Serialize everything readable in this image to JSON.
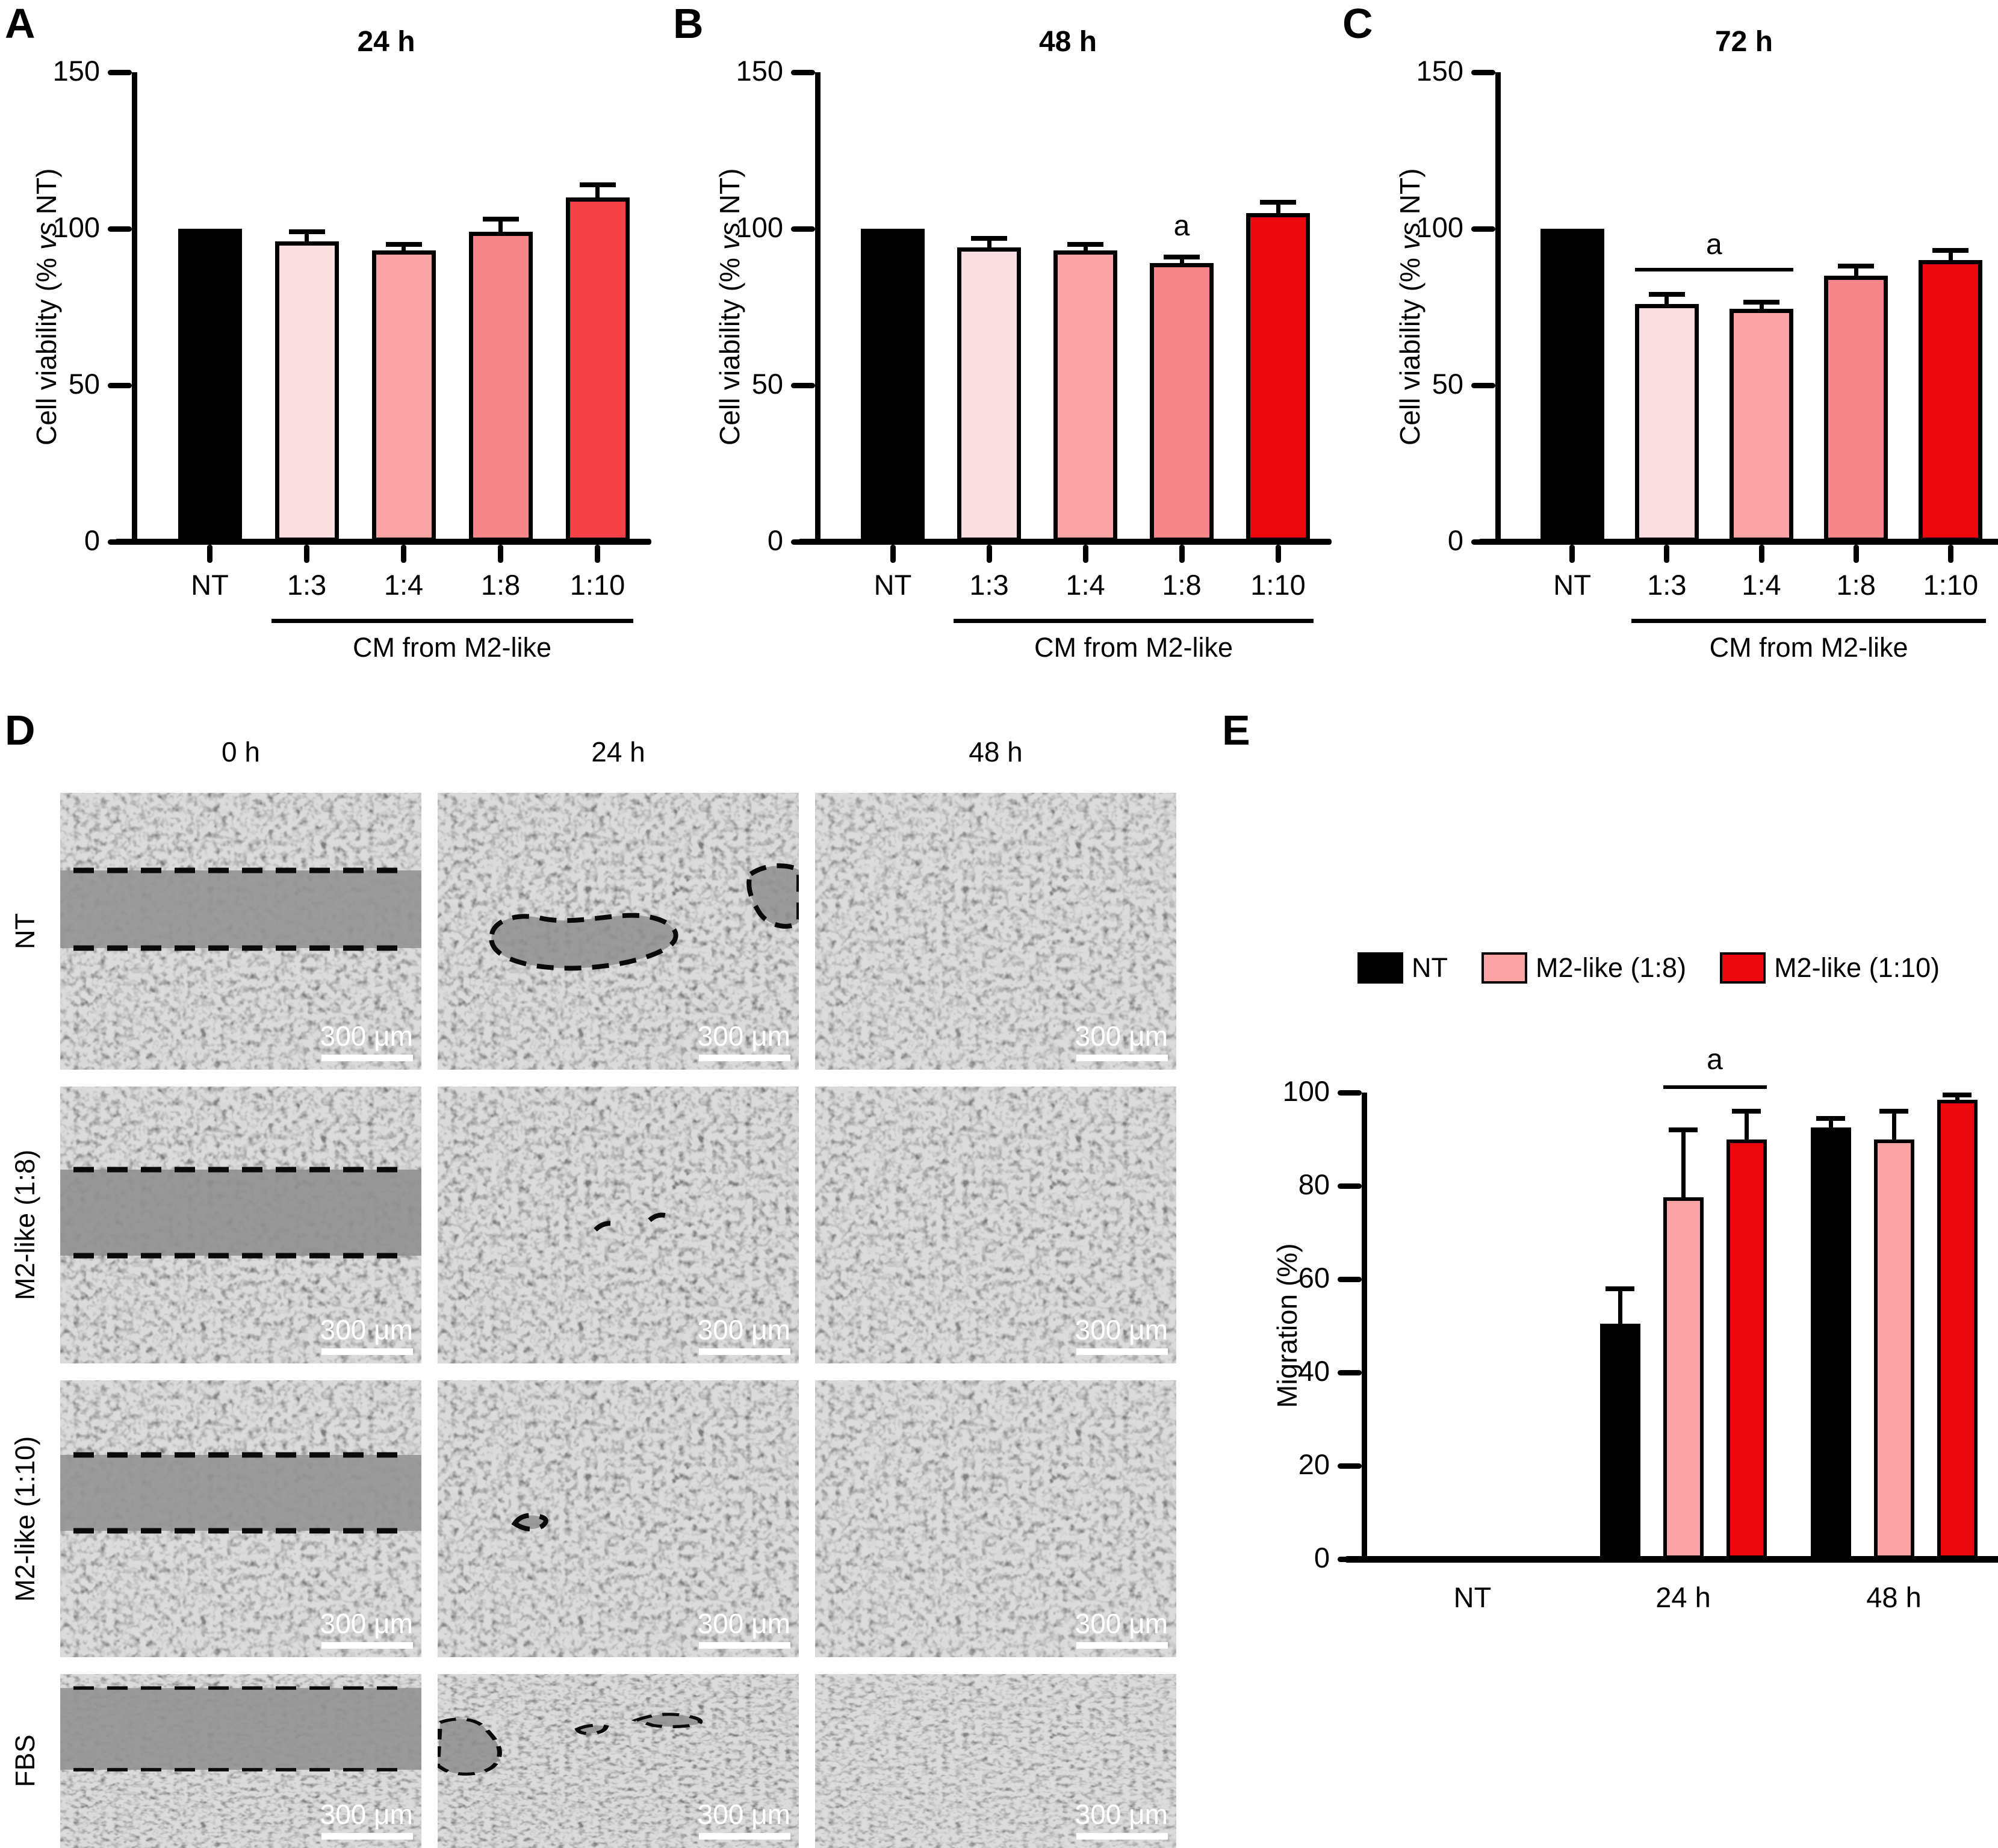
{
  "panel_letters": [
    "A",
    "B",
    "C",
    "D",
    "E"
  ],
  "viability_ylabel": {
    "prefix": "Cell viability (% ",
    "italic": "vs",
    "suffix": " NT)"
  },
  "chart_data": [
    {
      "id": "A",
      "type": "bar",
      "title": "24 h",
      "ylabel": "Cell viability (% vs NT)",
      "ylim": [
        0,
        150
      ],
      "yticks": [
        0,
        50,
        100,
        150
      ],
      "categories": [
        "NT",
        "1:3",
        "1:4",
        "1:8",
        "1:10"
      ],
      "values": [
        100,
        96,
        93,
        99,
        110
      ],
      "errors": [
        null,
        3,
        2,
        4,
        4
      ],
      "bar_colors": [
        "#000000",
        "#fbdee1",
        "#fba3a5",
        "#f8878b",
        "#f64247"
      ],
      "group_label": "CM from M2-like",
      "group_from": "1:3",
      "group_to": "1:10",
      "annotations": []
    },
    {
      "id": "B",
      "type": "bar",
      "title": "48 h",
      "ylabel": "Cell viability (% vs NT)",
      "ylim": [
        0,
        150
      ],
      "yticks": [
        0,
        50,
        100,
        150
      ],
      "categories": [
        "NT",
        "1:3",
        "1:4",
        "1:8",
        "1:10"
      ],
      "values": [
        100,
        94,
        93,
        89,
        105
      ],
      "errors": [
        null,
        3,
        2,
        2,
        3.5
      ],
      "bar_colors": [
        "#000000",
        "#fbdee1",
        "#fba3a5",
        "#f8878b",
        "#ee070c"
      ],
      "group_label": "CM from M2-like",
      "group_from": "1:3",
      "group_to": "1:10",
      "annotations": [
        {
          "type": "text",
          "text": "a",
          "category": "1:8",
          "y": 95
        }
      ]
    },
    {
      "id": "C",
      "type": "bar",
      "title": "72 h",
      "ylabel": "Cell viability (% vs NT)",
      "ylim": [
        0,
        150
      ],
      "yticks": [
        0,
        50,
        100,
        150
      ],
      "categories": [
        "NT",
        "1:3",
        "1:4",
        "1:8",
        "1:10"
      ],
      "values": [
        100,
        76,
        74.5,
        85,
        90
      ],
      "errors": [
        null,
        3,
        2,
        3,
        3
      ],
      "bar_colors": [
        "#000000",
        "#fbdee1",
        "#fba3a5",
        "#f8878b",
        "#ee070c"
      ],
      "group_label": "CM from M2-like",
      "group_from": "1:3",
      "group_to": "1:10",
      "annotations": [
        {
          "type": "bracket",
          "text": "a",
          "from": "1:3",
          "to": "1:4",
          "y": 87.5
        }
      ]
    },
    {
      "id": "E",
      "type": "grouped-bar",
      "title": "",
      "ylabel": "Migration (%)",
      "ylim": [
        0,
        100
      ],
      "yticks": [
        0,
        20,
        40,
        60,
        80,
        100
      ],
      "categories": [
        "NT",
        "24 h",
        "48 h"
      ],
      "series": [
        {
          "name": "NT",
          "color": "#000000",
          "values": [
            null,
            50.5,
            92.5
          ],
          "errors": [
            null,
            7.5,
            2
          ]
        },
        {
          "name": "M2-like (1:8)",
          "color": "#fba3a5",
          "values": [
            null,
            77.5,
            90
          ],
          "errors": [
            null,
            14.5,
            6
          ]
        },
        {
          "name": "M2-like (1:10)",
          "color": "#ee070c",
          "values": [
            null,
            90,
            98.5
          ],
          "errors": [
            null,
            6,
            1
          ]
        }
      ],
      "legend_position": "top",
      "annotations": [
        {
          "type": "bracket",
          "text": "a",
          "category": "24 h",
          "series_from": 1,
          "series_to": 2,
          "y": 101.5
        }
      ]
    }
  ],
  "panel_d": {
    "column_headers": [
      "0 h",
      "24 h",
      "48 h"
    ],
    "rows": [
      {
        "label": "NT",
        "tiles": [
          {
            "kind": "scratch-wound"
          },
          {
            "kind": "closing-gap"
          },
          {
            "kind": "confluent"
          }
        ]
      },
      {
        "label": "M2-like (1:8)",
        "tiles": [
          {
            "kind": "scratch-wound"
          },
          {
            "kind": "closing-gap"
          },
          {
            "kind": "confluent"
          }
        ]
      },
      {
        "label": "M2-like (1:10)",
        "tiles": [
          {
            "kind": "scratch-wound"
          },
          {
            "kind": "closing-gap"
          },
          {
            "kind": "confluent"
          }
        ]
      },
      {
        "label": "FBS",
        "tiles": [
          {
            "kind": "scratch-wound"
          },
          {
            "kind": "closing-gap"
          },
          {
            "kind": "confluent"
          }
        ]
      }
    ],
    "scale_bar_label": "300 μm"
  }
}
